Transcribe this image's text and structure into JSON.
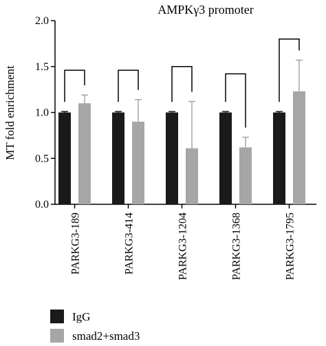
{
  "chart_data": {
    "type": "bar",
    "title": "AMPKγ3 promoter",
    "xlabel": "",
    "ylabel": "MT fold enrichment",
    "ylim": [
      0,
      2.0
    ],
    "yticks": [
      "0.0",
      "0.5",
      "1.0",
      "1.5",
      "2.0"
    ],
    "ytick_values": [
      0,
      0.5,
      1.0,
      1.5,
      2.0
    ],
    "grid": false,
    "legend_position": "bottom-left",
    "categories": [
      "PARKG3-189",
      "PARKG3-414",
      "PARKG3-1204",
      "PARKG3-1368",
      "PARKG3-1795"
    ],
    "series": [
      {
        "name": "IgG",
        "color": "#1a1a1a",
        "values": [
          1.0,
          1.0,
          1.0,
          1.0,
          1.0
        ],
        "errors": [
          0.01,
          0.01,
          0.01,
          0.01,
          0.01
        ]
      },
      {
        "name": "smad2+smad3",
        "color": "#a6a6a6",
        "values": [
          1.1,
          0.9,
          0.61,
          0.62,
          1.23
        ],
        "errors": [
          0.09,
          0.24,
          0.51,
          0.11,
          0.34
        ]
      }
    ],
    "comparison_bracket_tops": [
      1.46,
      1.46,
      1.5,
      1.42,
      1.8
    ]
  }
}
